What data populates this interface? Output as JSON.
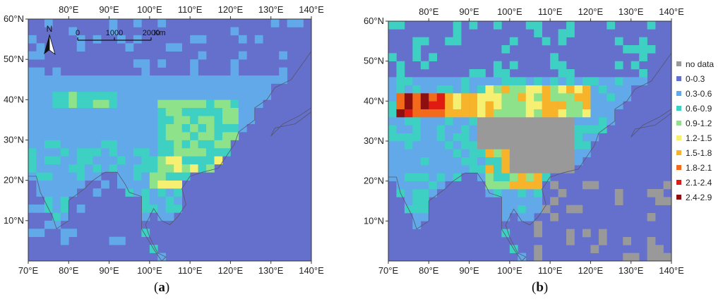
{
  "panels": [
    {
      "id": "a",
      "label": "a",
      "x_ticks": [
        "70°E",
        "80°E",
        "90°E",
        "100°E",
        "110°E",
        "120°E",
        "130°E",
        "140°E"
      ],
      "y_ticks": [
        "60°N",
        "50°N",
        "40°N",
        "30°N",
        "20°N",
        "10°N"
      ],
      "x_tick_position": "both",
      "north_arrow": "N",
      "scale_bar": {
        "labels": [
          "0",
          "1000",
          "2000"
        ],
        "unit": "Km"
      }
    },
    {
      "id": "b",
      "label": "b",
      "x_ticks": [
        "70°E",
        "80°E",
        "90°E",
        "100°E",
        "110°E",
        "120°E",
        "130°E",
        "140°E"
      ],
      "y_ticks": [
        "60°N",
        "50°N",
        "40°N",
        "30°N",
        "20°N",
        "10°N"
      ],
      "x_tick_position": "both"
    }
  ],
  "legend": [
    {
      "label": "no data",
      "color": "#999999"
    },
    {
      "label": "0-0.3",
      "color": "#6470cc"
    },
    {
      "label": "0.3-0.6",
      "color": "#62a9ea"
    },
    {
      "label": "0.6-0.9",
      "color": "#3ed0c2"
    },
    {
      "label": "0.9-1.2",
      "color": "#8ee38a"
    },
    {
      "label": "1.2-1.5",
      "color": "#f5f072"
    },
    {
      "label": "1.5-1.8",
      "color": "#f7b42a"
    },
    {
      "label": "1.8-2.1",
      "color": "#f26a1a"
    },
    {
      "label": "2.1-2.4",
      "color": "#e01b12"
    },
    {
      "label": "2.4-2.9",
      "color": "#8e0f0f"
    }
  ],
  "colors": {
    "ocean": "#6470cc",
    "land_low": "#62a9ea",
    "no_data": "#999999",
    "coast": "#555566"
  }
}
